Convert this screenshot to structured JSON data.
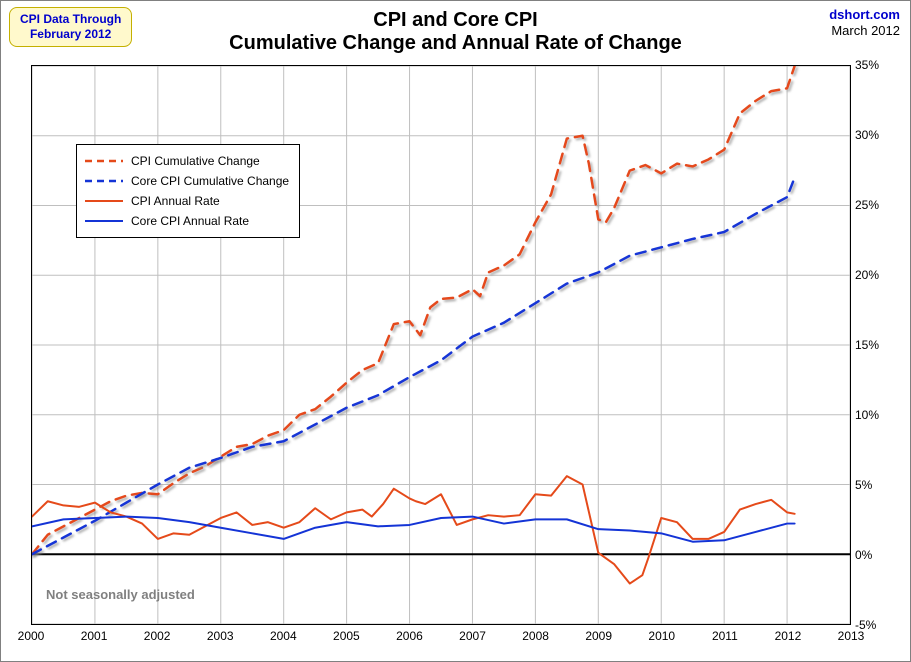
{
  "badge": {
    "line1": "CPI Data Through",
    "line2": "February 2012"
  },
  "attribution": {
    "site": "dshort.com",
    "date": "March 2012"
  },
  "title": {
    "line1": "CPI and Core CPI",
    "line2": "Cumulative Change and Annual Rate of Change"
  },
  "note": "Not seasonally adjusted",
  "chart": {
    "type": "line",
    "background_color": "#ffffff",
    "grid_color": "#bfbfbf",
    "zero_line_color": "#000000",
    "title_fontsize": 20,
    "axis_label_fontsize": 12,
    "x": {
      "min": 2000,
      "max": 2013,
      "ticks": [
        2000,
        2001,
        2002,
        2003,
        2004,
        2005,
        2006,
        2007,
        2008,
        2009,
        2010,
        2011,
        2012,
        2013
      ],
      "labels": [
        "2000",
        "2001",
        "2002",
        "2003",
        "2004",
        "2005",
        "2006",
        "2007",
        "2008",
        "2009",
        "2010",
        "2011",
        "2012",
        "2013"
      ]
    },
    "y": {
      "min": -5,
      "max": 35,
      "ticks": [
        -5,
        0,
        5,
        10,
        15,
        20,
        25,
        30,
        35
      ],
      "labels": [
        "-5%",
        "0%",
        "5%",
        "10%",
        "15%",
        "20%",
        "25%",
        "30%",
        "35%"
      ]
    },
    "legend": {
      "items": [
        {
          "label": "CPI Cumulative Change",
          "color": "#e54a1a",
          "dashed": true,
          "width": 2.5
        },
        {
          "label": "Core CPI Cumulative Change",
          "color": "#1434d6",
          "dashed": true,
          "width": 2.5
        },
        {
          "label": "CPI Annual Rate",
          "color": "#e54a1a",
          "dashed": false,
          "width": 2
        },
        {
          "label": "Core CPI Annual Rate",
          "color": "#1434d6",
          "dashed": false,
          "width": 2
        }
      ]
    },
    "series": [
      {
        "id": "cpi_cumulative",
        "color": "#e54a1a",
        "dashed": true,
        "width": 2.5,
        "shadow": true,
        "points": [
          [
            2000.0,
            0.0
          ],
          [
            2000.25,
            1.4
          ],
          [
            2000.5,
            2.0
          ],
          [
            2000.75,
            2.6
          ],
          [
            2001.0,
            3.2
          ],
          [
            2001.25,
            3.8
          ],
          [
            2001.5,
            4.2
          ],
          [
            2001.75,
            4.4
          ],
          [
            2002.0,
            4.3
          ],
          [
            2002.25,
            5.1
          ],
          [
            2002.5,
            5.8
          ],
          [
            2002.75,
            6.3
          ],
          [
            2003.0,
            7.0
          ],
          [
            2003.25,
            7.7
          ],
          [
            2003.5,
            7.9
          ],
          [
            2003.75,
            8.5
          ],
          [
            2004.0,
            8.9
          ],
          [
            2004.25,
            10.0
          ],
          [
            2004.5,
            10.4
          ],
          [
            2004.75,
            11.3
          ],
          [
            2005.0,
            12.3
          ],
          [
            2005.25,
            13.2
          ],
          [
            2005.5,
            13.7
          ],
          [
            2005.75,
            16.5
          ],
          [
            2006.0,
            16.7
          ],
          [
            2006.17,
            15.7
          ],
          [
            2006.33,
            17.7
          ],
          [
            2006.5,
            18.3
          ],
          [
            2006.75,
            18.4
          ],
          [
            2007.0,
            19.0
          ],
          [
            2007.12,
            18.5
          ],
          [
            2007.25,
            20.2
          ],
          [
            2007.5,
            20.7
          ],
          [
            2007.75,
            21.5
          ],
          [
            2008.0,
            23.8
          ],
          [
            2008.25,
            25.8
          ],
          [
            2008.5,
            29.8
          ],
          [
            2008.75,
            30.0
          ],
          [
            2008.85,
            28.0
          ],
          [
            2009.0,
            24.0
          ],
          [
            2009.12,
            23.8
          ],
          [
            2009.25,
            24.8
          ],
          [
            2009.5,
            27.5
          ],
          [
            2009.75,
            27.9
          ],
          [
            2010.0,
            27.3
          ],
          [
            2010.25,
            28.0
          ],
          [
            2010.5,
            27.8
          ],
          [
            2010.75,
            28.3
          ],
          [
            2011.0,
            29.0
          ],
          [
            2011.25,
            31.6
          ],
          [
            2011.5,
            32.5
          ],
          [
            2011.75,
            33.2
          ],
          [
            2012.0,
            33.4
          ],
          [
            2012.12,
            35.0
          ]
        ]
      },
      {
        "id": "core_cpi_cumulative",
        "color": "#1434d6",
        "dashed": true,
        "width": 2.5,
        "shadow": true,
        "points": [
          [
            2000.0,
            0.0
          ],
          [
            2000.5,
            1.2
          ],
          [
            2001.0,
            2.4
          ],
          [
            2001.5,
            3.7
          ],
          [
            2002.0,
            5.0
          ],
          [
            2002.5,
            6.2
          ],
          [
            2003.0,
            6.9
          ],
          [
            2003.5,
            7.7
          ],
          [
            2004.0,
            8.1
          ],
          [
            2004.5,
            9.3
          ],
          [
            2005.0,
            10.5
          ],
          [
            2005.5,
            11.4
          ],
          [
            2006.0,
            12.7
          ],
          [
            2006.5,
            13.9
          ],
          [
            2007.0,
            15.6
          ],
          [
            2007.5,
            16.6
          ],
          [
            2008.0,
            18.0
          ],
          [
            2008.5,
            19.4
          ],
          [
            2009.0,
            20.2
          ],
          [
            2009.5,
            21.4
          ],
          [
            2010.0,
            22.0
          ],
          [
            2010.5,
            22.6
          ],
          [
            2011.0,
            23.1
          ],
          [
            2011.5,
            24.4
          ],
          [
            2012.0,
            25.6
          ],
          [
            2012.12,
            27.0
          ]
        ]
      },
      {
        "id": "cpi_annual",
        "color": "#e54a1a",
        "dashed": false,
        "width": 2,
        "shadow": false,
        "points": [
          [
            2000.0,
            2.7
          ],
          [
            2000.25,
            3.8
          ],
          [
            2000.5,
            3.5
          ],
          [
            2000.75,
            3.4
          ],
          [
            2001.0,
            3.7
          ],
          [
            2001.25,
            3.0
          ],
          [
            2001.5,
            2.7
          ],
          [
            2001.75,
            2.2
          ],
          [
            2002.0,
            1.1
          ],
          [
            2002.25,
            1.5
          ],
          [
            2002.5,
            1.4
          ],
          [
            2002.75,
            2.0
          ],
          [
            2003.0,
            2.6
          ],
          [
            2003.25,
            3.0
          ],
          [
            2003.5,
            2.1
          ],
          [
            2003.75,
            2.3
          ],
          [
            2004.0,
            1.9
          ],
          [
            2004.25,
            2.3
          ],
          [
            2004.5,
            3.3
          ],
          [
            2004.75,
            2.5
          ],
          [
            2005.0,
            3.0
          ],
          [
            2005.25,
            3.2
          ],
          [
            2005.4,
            2.7
          ],
          [
            2005.58,
            3.6
          ],
          [
            2005.75,
            4.7
          ],
          [
            2006.0,
            4.0
          ],
          [
            2006.1,
            3.8
          ],
          [
            2006.25,
            3.6
          ],
          [
            2006.5,
            4.3
          ],
          [
            2006.75,
            2.1
          ],
          [
            2007.0,
            2.5
          ],
          [
            2007.25,
            2.8
          ],
          [
            2007.5,
            2.7
          ],
          [
            2007.75,
            2.8
          ],
          [
            2008.0,
            4.3
          ],
          [
            2008.25,
            4.2
          ],
          [
            2008.5,
            5.6
          ],
          [
            2008.75,
            5.0
          ],
          [
            2009.0,
            0.1
          ],
          [
            2009.25,
            -0.7
          ],
          [
            2009.5,
            -2.1
          ],
          [
            2009.7,
            -1.5
          ],
          [
            2009.8,
            -0.2
          ],
          [
            2010.0,
            2.6
          ],
          [
            2010.25,
            2.3
          ],
          [
            2010.5,
            1.1
          ],
          [
            2010.75,
            1.1
          ],
          [
            2011.0,
            1.6
          ],
          [
            2011.25,
            3.2
          ],
          [
            2011.5,
            3.6
          ],
          [
            2011.75,
            3.9
          ],
          [
            2012.0,
            3.0
          ],
          [
            2012.12,
            2.9
          ]
        ]
      },
      {
        "id": "core_cpi_annual",
        "color": "#1434d6",
        "dashed": false,
        "width": 2,
        "shadow": false,
        "points": [
          [
            2000.0,
            2.0
          ],
          [
            2000.5,
            2.5
          ],
          [
            2001.0,
            2.6
          ],
          [
            2001.5,
            2.7
          ],
          [
            2002.0,
            2.6
          ],
          [
            2002.5,
            2.3
          ],
          [
            2003.0,
            1.9
          ],
          [
            2003.5,
            1.5
          ],
          [
            2004.0,
            1.1
          ],
          [
            2004.5,
            1.9
          ],
          [
            2005.0,
            2.3
          ],
          [
            2005.5,
            2.0
          ],
          [
            2006.0,
            2.1
          ],
          [
            2006.5,
            2.6
          ],
          [
            2007.0,
            2.7
          ],
          [
            2007.5,
            2.2
          ],
          [
            2008.0,
            2.5
          ],
          [
            2008.5,
            2.5
          ],
          [
            2009.0,
            1.8
          ],
          [
            2009.5,
            1.7
          ],
          [
            2010.0,
            1.5
          ],
          [
            2010.5,
            0.9
          ],
          [
            2011.0,
            1.0
          ],
          [
            2011.5,
            1.6
          ],
          [
            2012.0,
            2.2
          ],
          [
            2012.12,
            2.2
          ]
        ]
      }
    ]
  }
}
